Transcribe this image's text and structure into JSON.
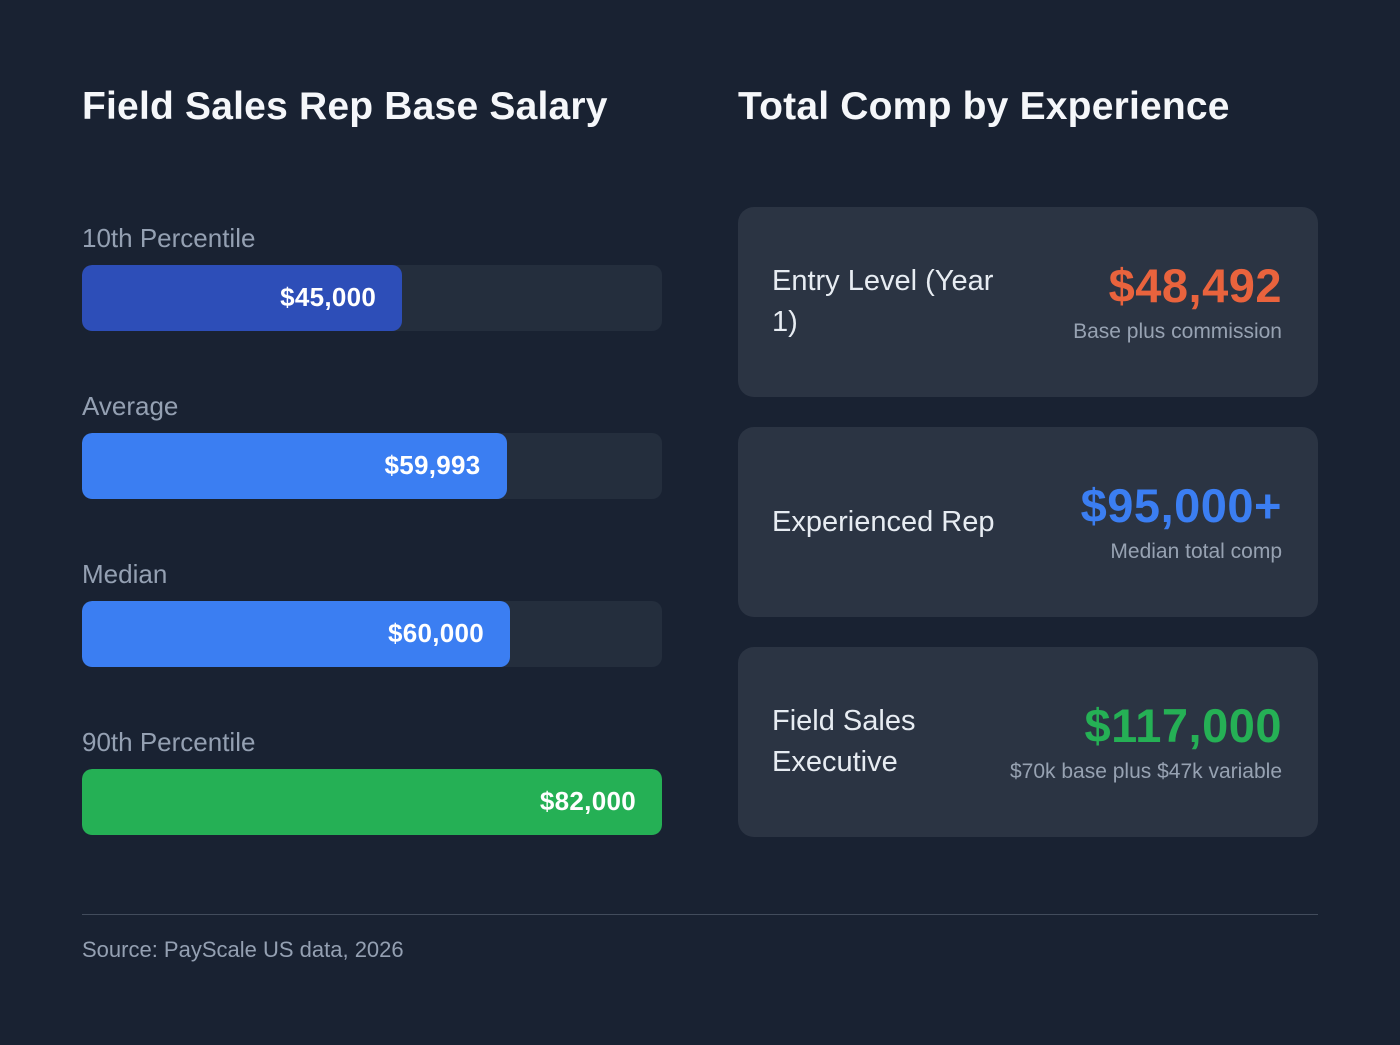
{
  "left": {
    "title": "Field Sales Rep Base Salary",
    "bars": [
      {
        "label": "10th Percentile",
        "value": 45000,
        "value_label": "$45,000",
        "pct": 55.2,
        "color": "#2d4eb8"
      },
      {
        "label": "Average",
        "value": 59993,
        "value_label": "$59,993",
        "pct": 73.2,
        "color": "#3b7ef2"
      },
      {
        "label": "Median",
        "value": 60000,
        "value_label": "$60,000",
        "pct": 73.8,
        "color": "#3b7ef2"
      },
      {
        "label": "90th Percentile",
        "value": 82000,
        "value_label": "$82,000",
        "pct": 100,
        "color": "#25b055"
      }
    ]
  },
  "right": {
    "title": "Total Comp by Experience",
    "cards": [
      {
        "label": "Entry Level (Year 1)",
        "value": "$48,492",
        "value_color": "#e9633d",
        "sub": "Base plus commission"
      },
      {
        "label": "Experienced Rep",
        "value": "$95,000+",
        "value_color": "#3b7ef2",
        "sub": "Median total comp"
      },
      {
        "label": "Field Sales Executive",
        "value": "$117,000",
        "value_color": "#25b055",
        "sub": "$70k base plus $47k variable"
      }
    ]
  },
  "footer": {
    "source": "Source: PayScale US data, 2026"
  },
  "chart_data": [
    {
      "type": "bar",
      "orientation": "horizontal",
      "title": "Field Sales Rep Base Salary",
      "categories": [
        "10th Percentile",
        "Average",
        "Median",
        "90th Percentile"
      ],
      "values": [
        45000,
        59993,
        60000,
        82000
      ],
      "value_labels": [
        "$45,000",
        "$59,993",
        "$60,000",
        "$82,000"
      ],
      "bar_colors": [
        "#2d4eb8",
        "#3b7ef2",
        "#3b7ef2",
        "#25b055"
      ],
      "xlim": [
        0,
        82000
      ],
      "grid": false,
      "legend": false
    },
    {
      "type": "table",
      "title": "Total Comp by Experience",
      "rows": [
        {
          "label": "Entry Level (Year 1)",
          "value": 48492,
          "value_label": "$48,492",
          "note": "Base plus commission"
        },
        {
          "label": "Experienced Rep",
          "value": 95000,
          "value_label": "$95,000+",
          "note": "Median total comp"
        },
        {
          "label": "Field Sales Executive",
          "value": 117000,
          "value_label": "$117,000",
          "note": "$70k base plus $47k variable"
        }
      ]
    }
  ]
}
